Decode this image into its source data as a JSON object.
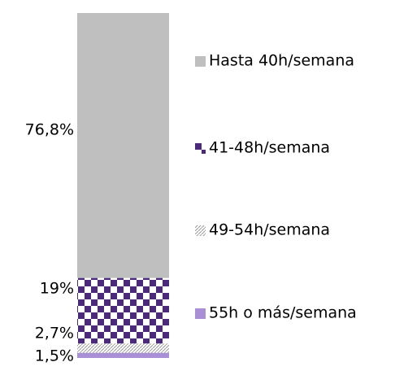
{
  "chart_data": {
    "type": "stacked-bar",
    "series": [
      {
        "name": "55h o más/semana",
        "color": "#a98fd6",
        "values": [
          1.5
        ],
        "value_labels": [
          "1,5%"
        ]
      },
      {
        "name": "49-54h/semana",
        "color": "#9a9a9a",
        "pattern": "hatch",
        "values": [
          2.7
        ],
        "value_labels": [
          "2,7%"
        ]
      },
      {
        "name": "41-48h/semana",
        "color": "#4b2a7b",
        "pattern": "checker",
        "values": [
          19
        ],
        "value_labels": [
          "19%"
        ]
      },
      {
        "name": "Hasta 40h/semana",
        "color": "#bfbfbf",
        "values": [
          76.8
        ],
        "value_labels": [
          "76,8%"
        ]
      }
    ],
    "legend": "right"
  }
}
